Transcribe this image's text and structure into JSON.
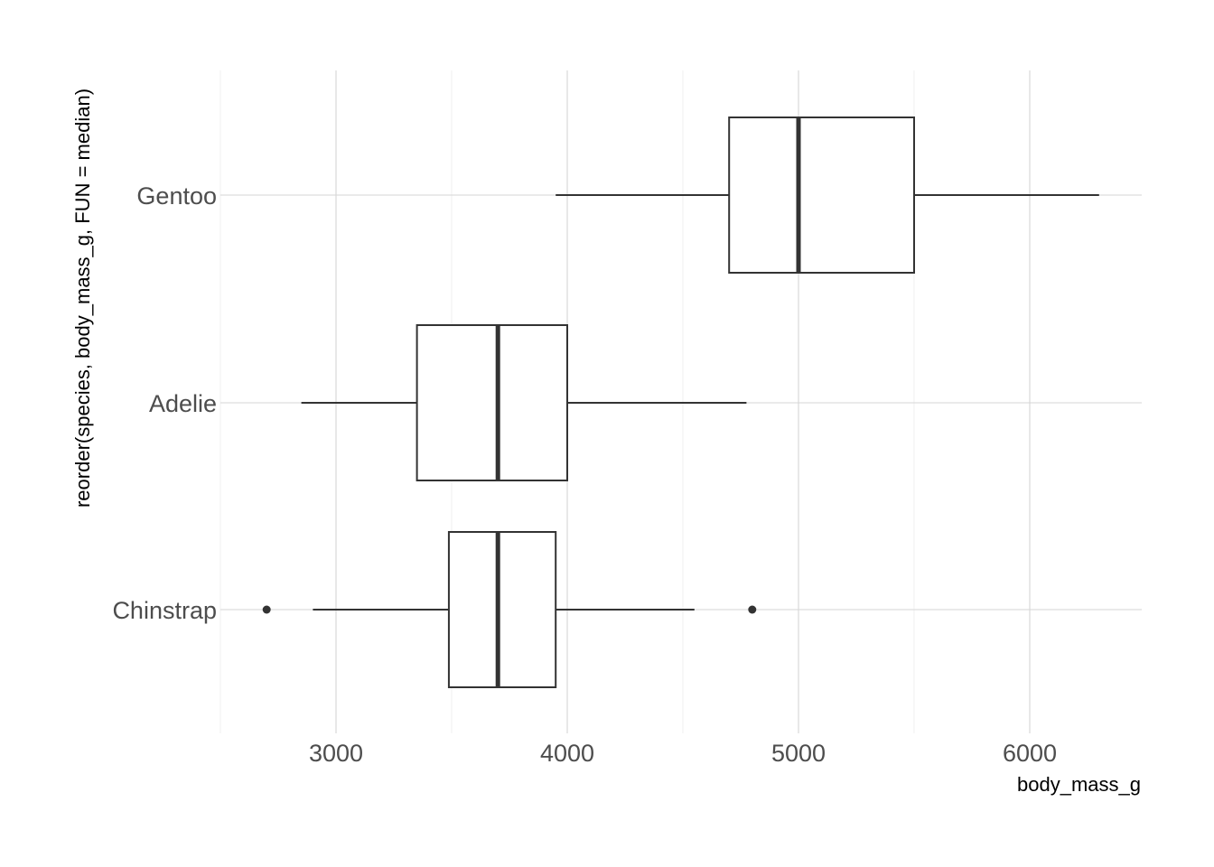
{
  "chart_data": {
    "type": "boxplot",
    "orientation": "horizontal",
    "xlabel": "body_mass_g",
    "ylabel": "reorder(species, body_mass_g, FUN = median)",
    "xlim": [
      2200,
      6500
    ],
    "x_ticks": [
      3000,
      4000,
      5000,
      6000
    ],
    "x_tick_labels": [
      "3000",
      "4000",
      "5000",
      "6000"
    ],
    "grid": true,
    "legend": "none",
    "categories": [
      "Chinstrap",
      "Adelie",
      "Gentoo"
    ],
    "boxes": [
      {
        "category": "Chinstrap",
        "whisker_low": 2900,
        "q1": 3488,
        "median": 3700,
        "q3": 3950,
        "whisker_high": 4550,
        "outliers": [
          2700,
          4800
        ]
      },
      {
        "category": "Adelie",
        "whisker_low": 2850,
        "q1": 3350,
        "median": 3700,
        "q3": 4000,
        "whisker_high": 4775,
        "outliers": []
      },
      {
        "category": "Gentoo",
        "whisker_low": 3950,
        "q1": 4700,
        "median": 5000,
        "q3": 5500,
        "whisker_high": 6300,
        "outliers": []
      }
    ]
  }
}
